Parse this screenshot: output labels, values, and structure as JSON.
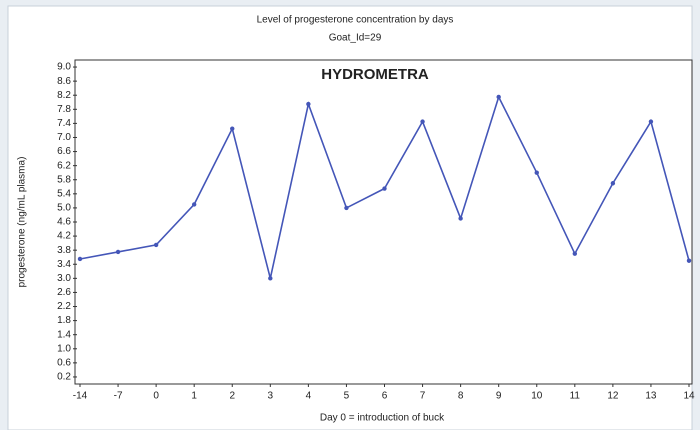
{
  "chart_data": {
    "type": "line",
    "title": "Level of progesterone concentration by days",
    "subtitle": "Goat_Id=29",
    "annotation": "HYDROMETRA",
    "ylabel": "progesterone (ng/mL plasma)",
    "xlabel": "Day 0 = introduction of buck",
    "categories": [
      "-14",
      "-7",
      "0",
      "1",
      "2",
      "3",
      "4",
      "5",
      "6",
      "7",
      "8",
      "9",
      "10",
      "11",
      "12",
      "13",
      "14"
    ],
    "series": [
      {
        "name": "Goat_Id=29",
        "color": "#4456b8",
        "values": [
          3.55,
          3.75,
          3.95,
          5.1,
          7.25,
          3.0,
          7.95,
          5.0,
          5.55,
          7.45,
          4.7,
          8.15,
          6.0,
          3.7,
          5.7,
          7.45,
          3.5
        ]
      }
    ],
    "ylim": [
      0,
      9.2
    ],
    "yticks": [
      0.2,
      0.6,
      {
        "value": 1,
        "label": "1.0"
      },
      1.4,
      1.8,
      2.2,
      2.6,
      {
        "value": 3,
        "label": "3.0"
      },
      3.4,
      3.8,
      4.2,
      4.6,
      {
        "value": 5,
        "label": "5.0"
      },
      5.4,
      5.8,
      6.2,
      6.6,
      {
        "value": 7,
        "label": "7.0"
      },
      7.4,
      7.8,
      8.2,
      8.6,
      {
        "value": 9,
        "label": "9.0"
      }
    ]
  }
}
